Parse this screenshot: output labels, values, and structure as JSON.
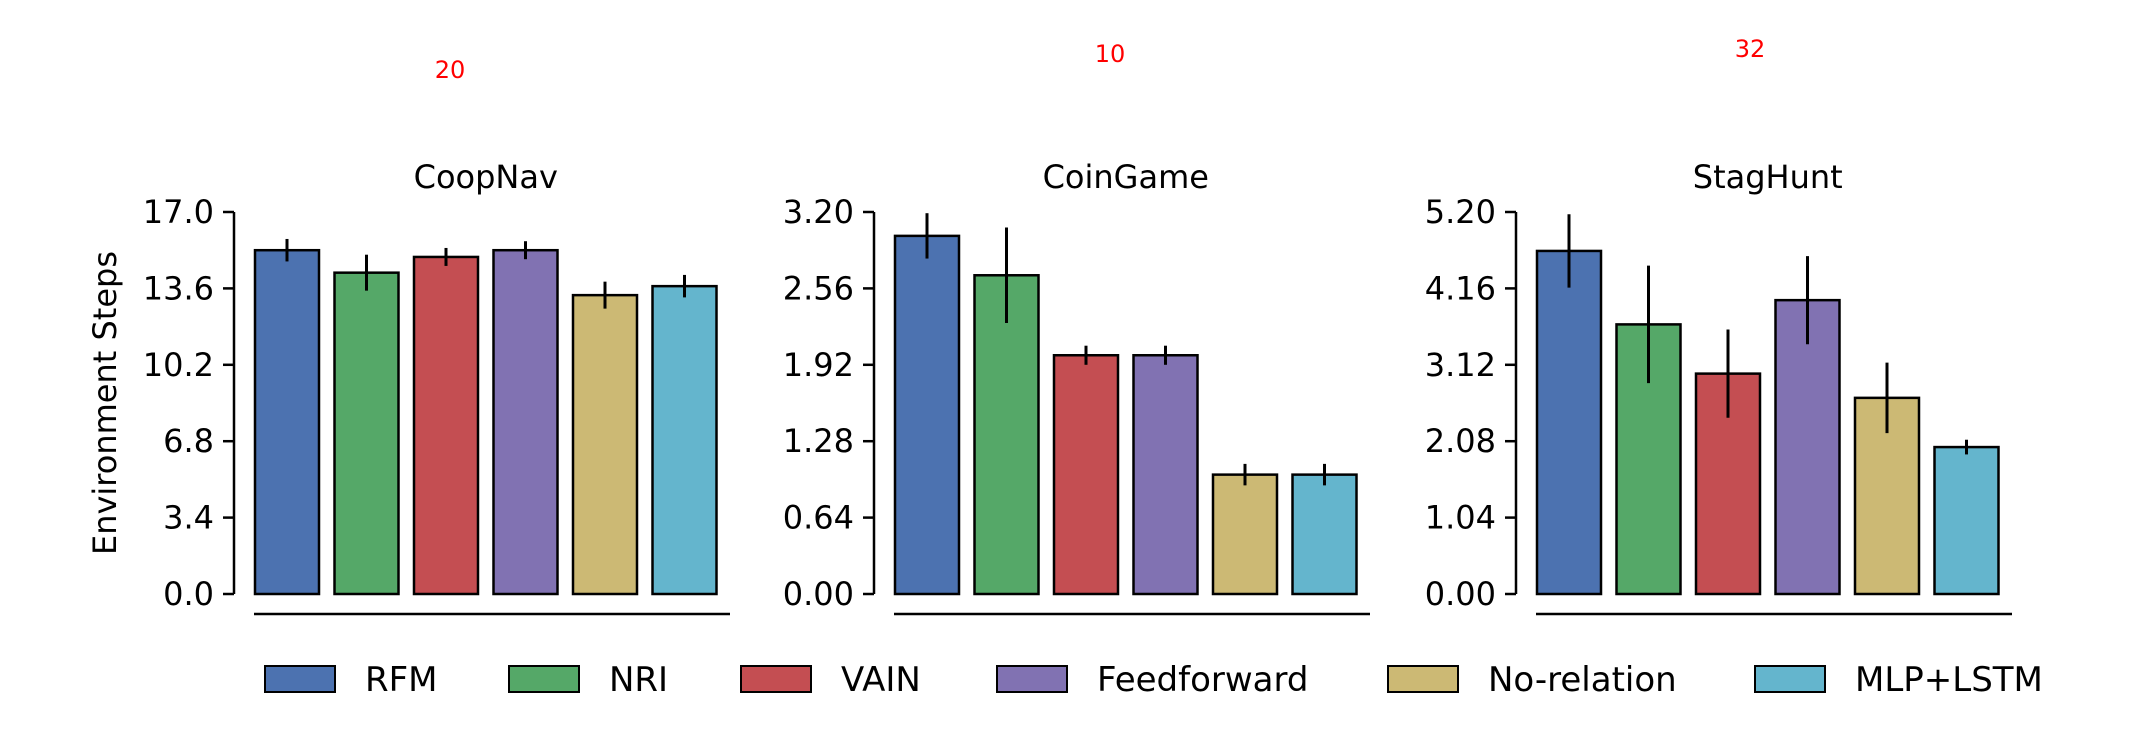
{
  "chart_data": [
    {
      "type": "bar",
      "title": "CoopNav",
      "ylabel": "Environment Steps",
      "annotation": "20",
      "ylim": [
        0,
        17.0
      ],
      "yticks": [
        "0.0",
        "3.4",
        "6.8",
        "10.2",
        "13.6",
        "17.0"
      ],
      "categories": [
        "RFM",
        "NRI",
        "VAIN",
        "Feedforward",
        "No-relation",
        "MLP+LSTM"
      ],
      "values": [
        15.3,
        14.3,
        15.0,
        15.3,
        13.3,
        13.7
      ],
      "errors": [
        0.5,
        0.8,
        0.4,
        0.4,
        0.6,
        0.5
      ]
    },
    {
      "type": "bar",
      "title": "CoinGame",
      "ylabel": "",
      "annotation": "10",
      "ylim": [
        0,
        3.2
      ],
      "yticks": [
        "0.00",
        "0.64",
        "1.28",
        "1.92",
        "2.56",
        "3.20"
      ],
      "categories": [
        "RFM",
        "NRI",
        "VAIN",
        "Feedforward",
        "No-relation",
        "MLP+LSTM"
      ],
      "values": [
        3.0,
        2.67,
        2.0,
        2.0,
        1.0,
        1.0
      ],
      "errors": [
        0.19,
        0.4,
        0.08,
        0.08,
        0.09,
        0.09
      ]
    },
    {
      "type": "bar",
      "title": "StagHunt",
      "ylabel": "",
      "annotation": "32",
      "ylim": [
        0,
        5.2
      ],
      "yticks": [
        "0.00",
        "1.04",
        "2.08",
        "3.12",
        "4.16",
        "5.20"
      ],
      "categories": [
        "RFM",
        "NRI",
        "VAIN",
        "Feedforward",
        "No-relation",
        "MLP+LSTM"
      ],
      "values": [
        4.67,
        3.67,
        3.0,
        4.0,
        2.67,
        2.0
      ],
      "errors": [
        0.5,
        0.8,
        0.6,
        0.6,
        0.48,
        0.1
      ]
    }
  ],
  "legend": [
    {
      "label": "RFM",
      "color": "#4c72b0"
    },
    {
      "label": "NRI",
      "color": "#55a868"
    },
    {
      "label": "VAIN",
      "color": "#c44e52"
    },
    {
      "label": "Feedforward",
      "color": "#8172b2"
    },
    {
      "label": "No-relation",
      "color": "#ccb974"
    },
    {
      "label": "MLP+LSTM",
      "color": "#64b5cd"
    }
  ],
  "annotation_color": "#ff0000"
}
